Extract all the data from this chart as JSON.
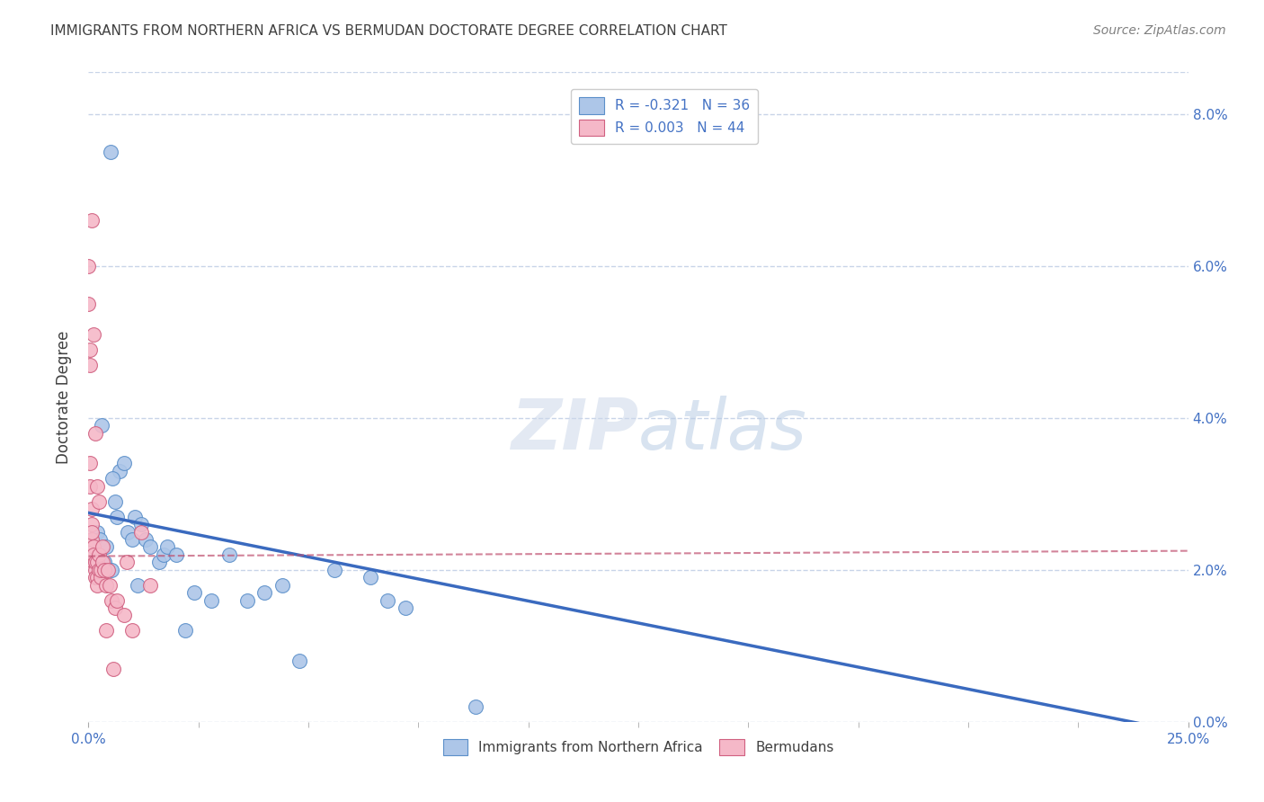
{
  "title": "IMMIGRANTS FROM NORTHERN AFRICA VS BERMUDAN DOCTORATE DEGREE CORRELATION CHART",
  "source": "Source: ZipAtlas.com",
  "ylabel": "Doctorate Degree",
  "legend_blue_label": "Immigrants from Northern Africa",
  "legend_pink_label": "Bermudans",
  "legend_blue_r": "R = -0.321",
  "legend_blue_n": "N = 36",
  "legend_pink_r": "R = 0.003",
  "legend_pink_n": "N = 44",
  "blue_scatter_x": [
    0.5,
    0.3,
    0.7,
    0.55,
    0.2,
    0.25,
    0.4,
    0.35,
    0.65,
    0.6,
    0.8,
    0.9,
    1.0,
    1.05,
    1.2,
    1.3,
    1.4,
    1.6,
    1.7,
    1.8,
    2.0,
    2.4,
    2.8,
    3.2,
    3.6,
    4.0,
    4.4,
    5.6,
    6.4,
    6.8,
    7.2,
    8.8,
    0.52,
    1.12,
    2.2,
    4.8
  ],
  "blue_scatter_y": [
    7.5,
    3.9,
    3.3,
    3.2,
    2.5,
    2.4,
    2.3,
    2.1,
    2.7,
    2.9,
    3.4,
    2.5,
    2.4,
    2.7,
    2.6,
    2.4,
    2.3,
    2.1,
    2.2,
    2.3,
    2.2,
    1.7,
    1.6,
    2.2,
    1.6,
    1.7,
    1.8,
    2.0,
    1.9,
    1.6,
    1.5,
    0.2,
    2.0,
    1.8,
    1.2,
    0.8
  ],
  "pink_scatter_x": [
    0.0,
    0.0,
    0.04,
    0.04,
    0.04,
    0.04,
    0.08,
    0.08,
    0.08,
    0.08,
    0.12,
    0.12,
    0.12,
    0.16,
    0.16,
    0.16,
    0.2,
    0.2,
    0.2,
    0.24,
    0.24,
    0.28,
    0.28,
    0.32,
    0.32,
    0.36,
    0.4,
    0.44,
    0.48,
    0.52,
    0.6,
    0.64,
    0.8,
    1.0,
    1.2,
    1.4,
    0.08,
    0.12,
    0.16,
    0.2,
    0.24,
    0.4,
    0.56,
    0.88
  ],
  "pink_scatter_y": [
    5.5,
    6.0,
    4.7,
    4.9,
    3.1,
    3.4,
    2.6,
    2.8,
    2.4,
    2.5,
    2.3,
    2.1,
    2.2,
    2.0,
    1.9,
    2.1,
    2.1,
    1.9,
    1.8,
    2.0,
    2.2,
    1.9,
    2.0,
    2.1,
    2.3,
    2.0,
    1.8,
    2.0,
    1.8,
    1.6,
    1.5,
    1.6,
    1.4,
    1.2,
    2.5,
    1.8,
    6.6,
    5.1,
    3.8,
    3.1,
    2.9,
    1.2,
    0.7,
    2.1
  ],
  "blue_line_x": [
    0.0,
    25.0
  ],
  "blue_line_y": [
    2.75,
    -0.15
  ],
  "pink_line_x": [
    0.0,
    25.0
  ],
  "pink_line_y": [
    2.18,
    2.25
  ],
  "xlim": [
    0.0,
    25.0
  ],
  "ylim": [
    0.0,
    8.55
  ],
  "x_ticks": [
    0.0,
    25.0
  ],
  "x_tick_labels": [
    "0.0%",
    "25.0%"
  ],
  "x_minor_ticks": [
    2.5,
    5.0,
    7.5,
    10.0,
    12.5,
    15.0,
    17.5,
    20.0,
    22.5
  ],
  "y_ticks": [
    0.0,
    2.0,
    4.0,
    6.0,
    8.0
  ],
  "y_tick_labels": [
    "0.0%",
    "2.0%",
    "4.0%",
    "6.0%",
    "8.0%"
  ],
  "watermark_zip": "ZIP",
  "watermark_atlas": "atlas",
  "background_color": "#ffffff",
  "blue_color": "#adc6e8",
  "pink_color": "#f5b8c8",
  "blue_edge_color": "#5b8fc9",
  "pink_edge_color": "#d06080",
  "blue_line_color": "#3a6abf",
  "pink_line_color": "#c05070",
  "grid_color": "#c8d4e8",
  "title_color": "#404040",
  "tick_label_color": "#4472c4",
  "source_color": "#808080"
}
